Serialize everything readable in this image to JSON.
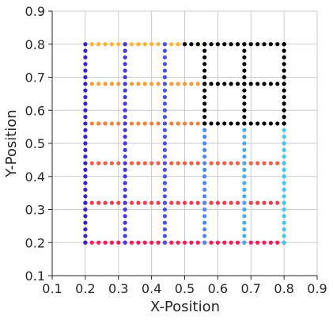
{
  "chart_data": {
    "type": "scatter",
    "title": "",
    "xlabel": "X-Position",
    "ylabel": "Y-Position",
    "xlim": [
      0.1,
      0.9
    ],
    "ylim": [
      0.1,
      0.9
    ],
    "x_ticks": [
      "0.1",
      "0.2",
      "0.3",
      "0.4",
      "0.5",
      "0.6",
      "0.7",
      "0.8",
      "0.9"
    ],
    "y_ticks": [
      "0.1",
      "0.2",
      "0.3",
      "0.4",
      "0.5",
      "0.6",
      "0.7",
      "0.8",
      "0.9"
    ],
    "grid": true,
    "marker": "dot",
    "series": [
      {
        "color": "#ff1a55",
        "orientation": "horizontal",
        "y": 0.2,
        "x_range": [
          0.2,
          0.8
        ]
      },
      {
        "color": "#fa3b4a",
        "orientation": "horizontal",
        "y": 0.32,
        "x_range": [
          0.2,
          0.8
        ]
      },
      {
        "color": "#fb5a3f",
        "orientation": "horizontal",
        "y": 0.44,
        "x_range": [
          0.2,
          0.8
        ]
      },
      {
        "color": "#fb7f35",
        "orientation": "horizontal",
        "y": 0.56,
        "x_range": [
          0.2,
          0.56
        ]
      },
      {
        "color": "#fb9b33",
        "orientation": "horizontal",
        "y": 0.68,
        "x_range": [
          0.2,
          0.56
        ]
      },
      {
        "color": "#fbb632",
        "orientation": "horizontal",
        "y": 0.8,
        "x_range": [
          0.2,
          0.56
        ]
      },
      {
        "color": "#3c1ee3",
        "orientation": "vertical",
        "x": 0.2,
        "y_range": [
          0.2,
          0.8
        ]
      },
      {
        "color": "#4534e9",
        "orientation": "vertical",
        "x": 0.32,
        "y_range": [
          0.2,
          0.8
        ]
      },
      {
        "color": "#4a52ee",
        "orientation": "vertical",
        "x": 0.44,
        "y_range": [
          0.2,
          0.8
        ]
      },
      {
        "color": "#4a88f2",
        "orientation": "vertical",
        "x": 0.56,
        "y_range": [
          0.2,
          0.56
        ]
      },
      {
        "color": "#46acf4",
        "orientation": "vertical",
        "x": 0.68,
        "y_range": [
          0.2,
          0.56
        ]
      },
      {
        "color": "#42c8f4",
        "orientation": "vertical",
        "x": 0.8,
        "y_range": [
          0.2,
          0.56
        ]
      },
      {
        "color": "#000000",
        "orientation": "horizontal",
        "y": 0.56,
        "x_range": [
          0.56,
          0.8
        ]
      },
      {
        "color": "#000000",
        "orientation": "horizontal",
        "y": 0.68,
        "x_range": [
          0.56,
          0.8
        ]
      },
      {
        "color": "#000000",
        "orientation": "horizontal",
        "y": 0.8,
        "x_range": [
          0.5,
          0.8
        ]
      },
      {
        "color": "#000000",
        "orientation": "vertical",
        "x": 0.56,
        "y_range": [
          0.56,
          0.8
        ]
      },
      {
        "color": "#000000",
        "orientation": "vertical",
        "x": 0.68,
        "y_range": [
          0.56,
          0.8
        ]
      },
      {
        "color": "#000000",
        "orientation": "vertical",
        "x": 0.8,
        "y_range": [
          0.56,
          0.8
        ]
      }
    ]
  }
}
